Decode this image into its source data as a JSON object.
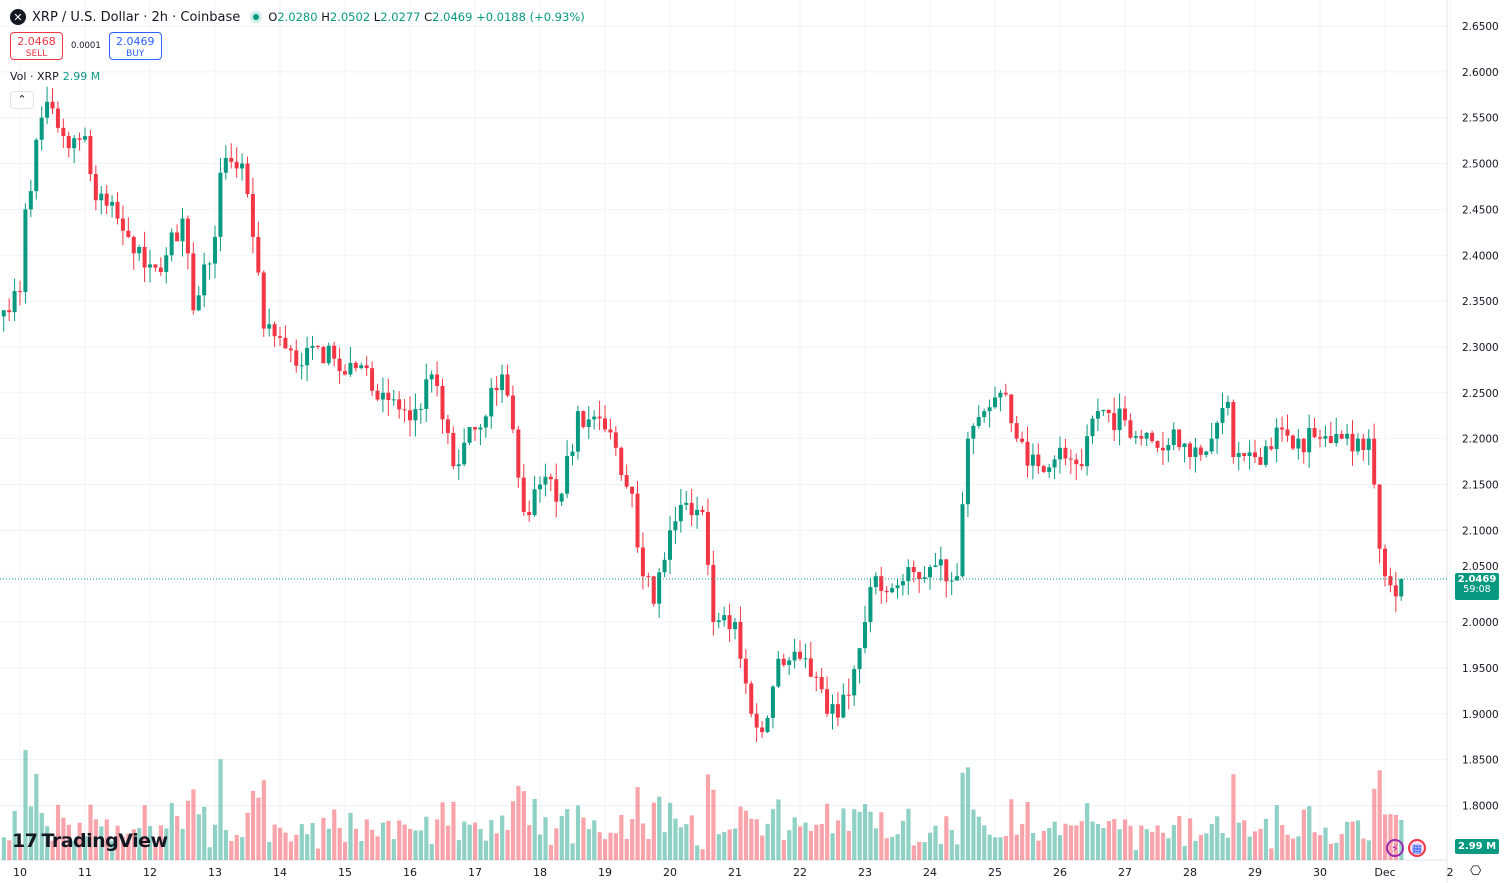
{
  "header": {
    "symbol_icon": "xrp-logo-icon",
    "title": "XRP / U.S. Dollar · 2h · Coinbase",
    "open_label": "O",
    "open": "2.0280",
    "high_label": "H",
    "high": "2.0502",
    "low_label": "L",
    "low": "2.0277",
    "close_label": "C",
    "close": "2.0469",
    "change": "+0.0188 (+0.93%)"
  },
  "trade": {
    "sell_price": "2.0468",
    "sell_label": "SELL",
    "spread": "0.0001",
    "buy_price": "2.0469",
    "buy_label": "BUY"
  },
  "volume_legend": {
    "label": "Vol · XRP",
    "value": "2.99 M"
  },
  "collapse_icon": "chevron-up-icon",
  "branding": "TradingView",
  "price_axis": {
    "current_price": "2.0469",
    "countdown": "59:08",
    "volume_badge": "2.99 M",
    "settings_icon": "gear-icon"
  },
  "colors": {
    "up": "#089981",
    "down": "#f23645",
    "grid": "#f0f3fa"
  },
  "chart_data": {
    "type": "candlestick",
    "interval": "2h",
    "ylim": [
      1.75,
      2.66
    ],
    "price_ticks": [
      "2.6500",
      "2.6000",
      "2.5500",
      "2.5000",
      "2.4500",
      "2.4000",
      "2.3500",
      "2.3000",
      "2.2500",
      "2.2000",
      "2.1500",
      "2.1000",
      "2.0500",
      "2.0000",
      "1.9500",
      "1.9000",
      "1.8500",
      "1.8000"
    ],
    "time_ticks": [
      {
        "label": "10",
        "t": "11-10 00:00"
      },
      {
        "label": "11",
        "t": "11-11 00:00"
      },
      {
        "label": "12",
        "t": "11-12 00:00"
      },
      {
        "label": "13",
        "t": "11-13 00:00"
      },
      {
        "label": "14",
        "t": "11-14 00:00"
      },
      {
        "label": "15",
        "t": "11-15 00:00"
      },
      {
        "label": "16",
        "t": "11-16 00:00"
      },
      {
        "label": "17",
        "t": "11-17 00:00"
      },
      {
        "label": "18",
        "t": "11-18 00:00"
      },
      {
        "label": "19",
        "t": "11-19 00:00"
      },
      {
        "label": "20",
        "t": "11-20 00:00"
      },
      {
        "label": "21",
        "t": "11-21 00:00"
      },
      {
        "label": "22",
        "t": "11-22 00:00"
      },
      {
        "label": "23",
        "t": "11-23 00:00"
      },
      {
        "label": "24",
        "t": "11-24 00:00"
      },
      {
        "label": "25",
        "t": "11-25 00:00"
      },
      {
        "label": "26",
        "t": "11-26 00:00"
      },
      {
        "label": "27",
        "t": "11-27 00:00"
      },
      {
        "label": "28",
        "t": "11-28 00:00"
      },
      {
        "label": "29",
        "t": "11-29 00:00"
      },
      {
        "label": "30",
        "t": "11-30 00:00"
      },
      {
        "label": "Dec",
        "t": "12-01 00:00"
      },
      {
        "label": "2",
        "t": "12-02 00:00"
      }
    ],
    "close_path": [
      [
        "11-09 18:00",
        2.34
      ],
      [
        "11-10 00:00",
        2.36
      ],
      [
        "11-10 02:00",
        2.45
      ],
      [
        "11-10 08:00",
        2.55
      ],
      [
        "11-10 12:00",
        2.56
      ],
      [
        "11-10 16:00",
        2.53
      ],
      [
        "11-11 00:00",
        2.53
      ],
      [
        "11-11 04:00",
        2.46
      ],
      [
        "11-11 12:00",
        2.44
      ],
      [
        "11-11 16:00",
        2.42
      ],
      [
        "11-12 00:00",
        2.39
      ],
      [
        "11-12 06:00",
        2.4
      ],
      [
        "11-12 12:00",
        2.44
      ],
      [
        "11-12 16:00",
        2.34
      ],
      [
        "11-12 20:00",
        2.39
      ],
      [
        "11-13 00:00",
        2.42
      ],
      [
        "11-13 02:00",
        2.49
      ],
      [
        "11-13 10:00",
        2.5
      ],
      [
        "11-13 14:00",
        2.42
      ],
      [
        "11-13 18:00",
        2.32
      ],
      [
        "11-14 00:00",
        2.31
      ],
      [
        "11-14 08:00",
        2.28
      ],
      [
        "11-14 14:00",
        2.3
      ],
      [
        "11-15 00:00",
        2.27
      ],
      [
        "11-15 06:00",
        2.28
      ],
      [
        "11-15 14:00",
        2.25
      ],
      [
        "11-16 00:00",
        2.22
      ],
      [
        "11-16 08:00",
        2.27
      ],
      [
        "11-16 16:00",
        2.17
      ],
      [
        "11-17 00:00",
        2.21
      ],
      [
        "11-17 10:00",
        2.27
      ],
      [
        "11-17 14:00",
        2.21
      ],
      [
        "11-17 18:00",
        2.12
      ],
      [
        "11-18 00:00",
        2.15
      ],
      [
        "11-18 08:00",
        2.14
      ],
      [
        "11-18 14:00",
        2.23
      ],
      [
        "11-19 00:00",
        2.21
      ],
      [
        "11-19 04:00",
        2.19
      ],
      [
        "11-19 10:00",
        2.14
      ],
      [
        "11-19 14:00",
        2.05
      ],
      [
        "11-19 18:00",
        2.02
      ],
      [
        "11-20 00:00",
        2.1
      ],
      [
        "11-20 06:00",
        2.13
      ],
      [
        "11-20 12:00",
        2.12
      ],
      [
        "11-20 16:00",
        2.0
      ],
      [
        "11-21 00:00",
        2.0
      ],
      [
        "11-21 02:00",
        1.96
      ],
      [
        "11-21 06:00",
        1.9
      ],
      [
        "11-21 10:00",
        1.88
      ],
      [
        "11-21 16:00",
        1.96
      ],
      [
        "11-22 00:00",
        1.96
      ],
      [
        "11-22 06:00",
        1.94
      ],
      [
        "11-22 10:00",
        1.9
      ],
      [
        "11-22 18:00",
        1.92
      ],
      [
        "11-23 00:00",
        2.0
      ],
      [
        "11-23 04:00",
        2.05
      ],
      [
        "11-23 12:00",
        2.04
      ],
      [
        "11-24 00:00",
        2.06
      ],
      [
        "11-24 10:00",
        2.05
      ],
      [
        "11-24 14:00",
        2.2
      ],
      [
        "11-24 20:00",
        2.23
      ],
      [
        "11-25 02:00",
        2.25
      ],
      [
        "11-25 08:00",
        2.2
      ],
      [
        "11-25 16:00",
        2.17
      ],
      [
        "11-26 00:00",
        2.19
      ],
      [
        "11-26 08:00",
        2.17
      ],
      [
        "11-26 14:00",
        2.23
      ],
      [
        "11-27 00:00",
        2.22
      ],
      [
        "11-27 06:00",
        2.2
      ],
      [
        "11-27 12:00",
        2.19
      ],
      [
        "11-27 18:00",
        2.21
      ],
      [
        "11-28 00:00",
        2.18
      ],
      [
        "11-28 08:00",
        2.2
      ],
      [
        "11-28 14:00",
        2.24
      ],
      [
        "11-28 16:00",
        2.18
      ],
      [
        "11-29 00:00",
        2.18
      ],
      [
        "11-29 10:00",
        2.21
      ],
      [
        "11-29 16:00",
        2.2
      ],
      [
        "11-30 00:00",
        2.2
      ],
      [
        "11-30 08:00",
        2.2
      ],
      [
        "11-30 14:00",
        2.2
      ],
      [
        "11-30 18:00",
        2.2
      ],
      [
        "11-30 20:00",
        2.15
      ],
      [
        "11-30 22:00",
        2.08
      ],
      [
        "12-01 00:00",
        2.05
      ],
      [
        "12-01 02:00",
        2.04
      ],
      [
        "12-01 04:00",
        2.028
      ],
      [
        "12-01 06:00",
        2.0469
      ]
    ]
  }
}
